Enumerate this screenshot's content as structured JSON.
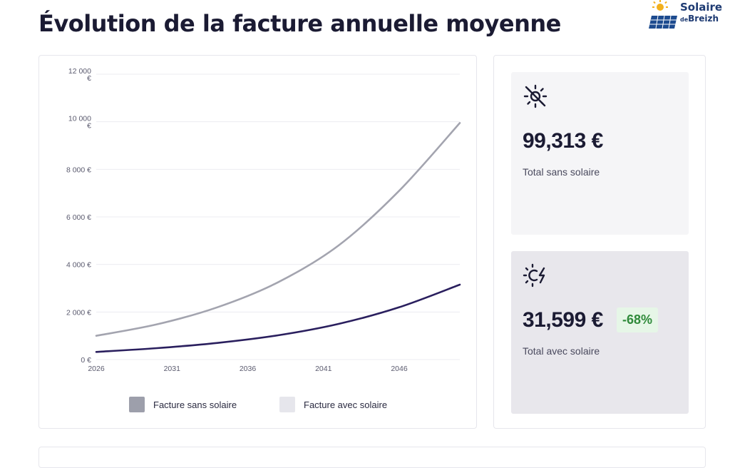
{
  "page": {
    "title": "Évolution de la facture annuelle moyenne"
  },
  "logo": {
    "line1": "Solaire",
    "line2_prefix": "de",
    "line2": "Breizh"
  },
  "chart_data": {
    "type": "line",
    "title": "",
    "xlabel": "",
    "ylabel": "",
    "xlim": [
      2026,
      2050
    ],
    "ylim": [
      0,
      12000
    ],
    "x_ticks": [
      "2026",
      "2031",
      "2036",
      "2041",
      "2046"
    ],
    "y_ticks": [
      "0 €",
      "2 000 €",
      "4 000 €",
      "6 000 €",
      "8 000 €",
      "10 000 €",
      "12 000 €"
    ],
    "grid": true,
    "legend_position": "bottom",
    "series": [
      {
        "name": "Facture sans solaire",
        "color": "#a3a4af",
        "x": [
          2026,
          2030,
          2034,
          2038,
          2042,
          2046,
          2050
        ],
        "y": [
          1000,
          1480,
          2200,
          3250,
          4800,
          7100,
          9950
        ]
      },
      {
        "name": "Facture avec solaire",
        "color": "#2a1f5e",
        "x": [
          2026,
          2030,
          2034,
          2038,
          2042,
          2046,
          2050
        ],
        "y": [
          320,
          480,
          700,
          1020,
          1500,
          2200,
          3150
        ]
      }
    ],
    "legend_swatch_colors": [
      "#9d9fab",
      "#e6e6ec"
    ]
  },
  "stats": {
    "without_solar": {
      "icon": "sun-off-icon",
      "value": "99,313 €",
      "label": "Total sans solaire"
    },
    "with_solar": {
      "icon": "sun-bolt-icon",
      "value": "31,599 €",
      "badge": "-68%",
      "label": "Total avec solaire"
    }
  },
  "colors": {
    "badge_bg": "#e6f6e7",
    "badge_text": "#2f8a3a"
  }
}
